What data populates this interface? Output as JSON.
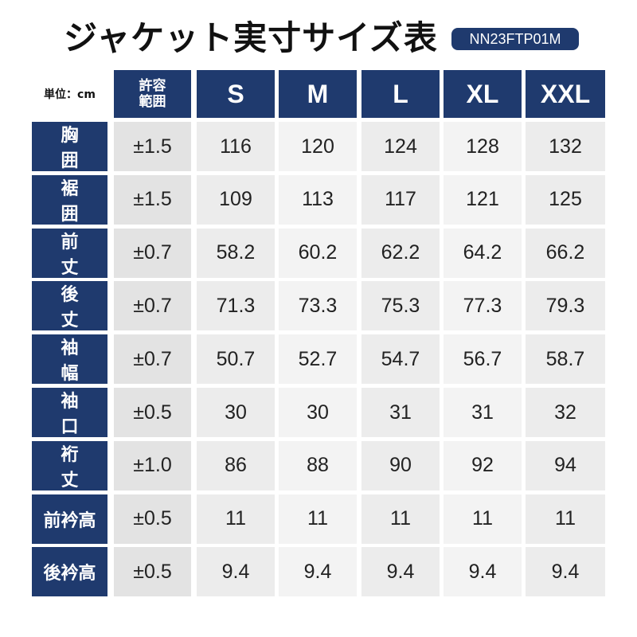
{
  "header": {
    "title": "ジャケット実寸サイズ表",
    "code": "NN23FTP01M"
  },
  "table": {
    "unit": "単位：cm",
    "columns": [
      "許容範囲",
      "S",
      "M",
      "L",
      "XL",
      "XXL"
    ],
    "rows": [
      [
        "胸囲",
        "±1.5",
        "116",
        "120",
        "124",
        "128",
        "132"
      ],
      [
        "裾囲",
        "±1.5",
        "109",
        "113",
        "117",
        "121",
        "125"
      ],
      [
        "前丈",
        "±0.7",
        "58.2",
        "60.2",
        "62.2",
        "64.2",
        "66.2"
      ],
      [
        "後丈",
        "±0.7",
        "71.3",
        "73.3",
        "75.3",
        "77.3",
        "79.3"
      ],
      [
        "袖幅",
        "±0.7",
        "50.7",
        "52.7",
        "54.7",
        "56.7",
        "58.7"
      ],
      [
        "袖口",
        "±0.5",
        "30",
        "30",
        "31",
        "31",
        "32"
      ],
      [
        "裄丈",
        "±1.0",
        "86",
        "88",
        "90",
        "92",
        "94"
      ],
      [
        "前衿高",
        "±0.5",
        "11",
        "11",
        "11",
        "11",
        "11"
      ],
      [
        "後衿高",
        "±0.5",
        "9.4",
        "9.4",
        "9.4",
        "9.4",
        "9.4"
      ]
    ]
  }
}
